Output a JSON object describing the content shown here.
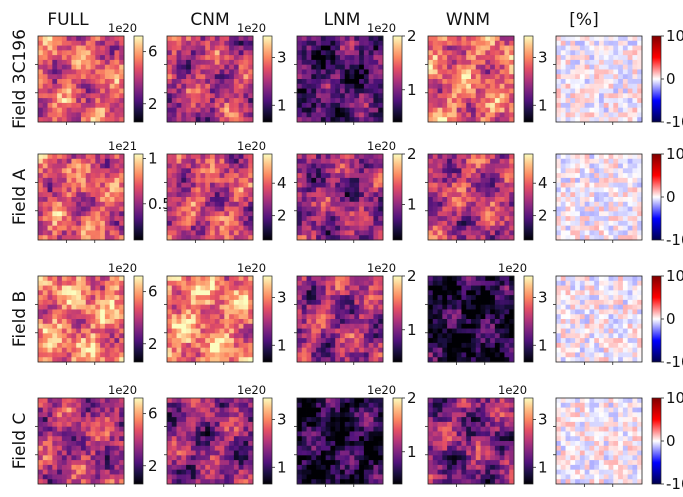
{
  "chart_data": {
    "type": "heatmap",
    "columns": [
      {
        "key": "full",
        "title": "FULL",
        "cmap": "magma"
      },
      {
        "key": "cnm",
        "title": "CNM",
        "cmap": "magma"
      },
      {
        "key": "lnm",
        "title": "LNM",
        "cmap": "magma"
      },
      {
        "key": "wnm",
        "title": "WNM",
        "cmap": "magma"
      },
      {
        "key": "pct",
        "title": "[%]",
        "cmap": "seismic"
      }
    ],
    "rows": [
      {
        "title": "Field 3C196",
        "panels": {
          "full": {
            "exp": "1e20",
            "ticks": [
              "2",
              "6"
            ],
            "range": [
              0.6,
              7.2
            ],
            "tickvals": [
              2,
              6
            ],
            "level": 0.62
          },
          "cnm": {
            "exp": "1e20",
            "ticks": [
              "1",
              "3"
            ],
            "range": [
              0.3,
              3.9
            ],
            "tickvals": [
              1,
              3
            ],
            "level": 0.5
          },
          "lnm": {
            "exp": "1e20",
            "ticks": [
              "1",
              "2"
            ],
            "range": [
              0.4,
              2.0
            ],
            "tickvals": [
              1,
              2
            ],
            "level": 0.25
          },
          "wnm": {
            "exp": "",
            "ticks": [
              "1",
              "3"
            ],
            "range": [
              0.3,
              3.9
            ],
            "tickvals": [
              1,
              3
            ],
            "level": 0.68
          },
          "pct": {
            "exp": "",
            "ticks": [
              "-10",
              "0",
              "10"
            ],
            "range": [
              -10,
              10
            ],
            "tickvals": [
              -10,
              0,
              10
            ],
            "level": 0.5
          }
        }
      },
      {
        "title": "Field A",
        "panels": {
          "full": {
            "exp": "1e21",
            "ticks": [
              "0.5",
              "1"
            ],
            "range": [
              0.1,
              1.05
            ],
            "tickvals": [
              0.5,
              1
            ],
            "level": 0.62
          },
          "cnm": {
            "exp": "1e20",
            "ticks": [
              "2",
              "4"
            ],
            "range": [
              0.5,
              5.8
            ],
            "tickvals": [
              2,
              4
            ],
            "level": 0.55
          },
          "lnm": {
            "exp": "1e20",
            "ticks": [
              "1",
              "2"
            ],
            "range": [
              0.3,
              2.0
            ],
            "tickvals": [
              1,
              2
            ],
            "level": 0.4
          },
          "wnm": {
            "exp": "",
            "ticks": [
              "2",
              "4"
            ],
            "range": [
              0.5,
              5.8
            ],
            "tickvals": [
              2,
              4
            ],
            "level": 0.5
          },
          "pct": {
            "exp": "",
            "ticks": [
              "-10",
              "0",
              "10"
            ],
            "range": [
              -10,
              10
            ],
            "tickvals": [
              -10,
              0,
              10
            ],
            "level": 0.5
          }
        }
      },
      {
        "title": "Field B",
        "panels": {
          "full": {
            "exp": "1e20",
            "ticks": [
              "2",
              "6"
            ],
            "range": [
              0.6,
              7.2
            ],
            "tickvals": [
              2,
              6
            ],
            "level": 0.72
          },
          "cnm": {
            "exp": "1e20",
            "ticks": [
              "1",
              "3"
            ],
            "range": [
              0.3,
              3.9
            ],
            "tickvals": [
              1,
              3
            ],
            "level": 0.75
          },
          "lnm": {
            "exp": "1e20",
            "ticks": [
              "1",
              "2"
            ],
            "range": [
              0.4,
              2.0
            ],
            "tickvals": [
              1,
              2
            ],
            "level": 0.45
          },
          "wnm": {
            "exp": "1e20",
            "ticks": [
              "1",
              "3"
            ],
            "range": [
              0.3,
              3.9
            ],
            "tickvals": [
              1,
              3
            ],
            "level": 0.12
          },
          "pct": {
            "exp": "",
            "ticks": [
              "-10",
              "0",
              "10"
            ],
            "range": [
              -10,
              10
            ],
            "tickvals": [
              -10,
              0,
              10
            ],
            "level": 0.5
          }
        }
      },
      {
        "title": "Field C",
        "panels": {
          "full": {
            "exp": "1e20",
            "ticks": [
              "2",
              "6"
            ],
            "range": [
              0.6,
              7.2
            ],
            "tickvals": [
              2,
              6
            ],
            "level": 0.48
          },
          "cnm": {
            "exp": "1e20",
            "ticks": [
              "1",
              "3"
            ],
            "range": [
              0.3,
              3.9
            ],
            "tickvals": [
              1,
              3
            ],
            "level": 0.4
          },
          "lnm": {
            "exp": "1e20",
            "ticks": [
              "1",
              "2"
            ],
            "range": [
              0.4,
              2.0
            ],
            "tickvals": [
              1,
              2
            ],
            "level": 0.12
          },
          "wnm": {
            "exp": "1e20",
            "ticks": [
              "1",
              "3"
            ],
            "range": [
              0.3,
              3.9
            ],
            "tickvals": [
              1,
              3
            ],
            "level": 0.38
          },
          "pct": {
            "exp": "",
            "ticks": [
              "-10",
              "0",
              "10"
            ],
            "range": [
              -10,
              10
            ],
            "tickvals": [
              -10,
              0,
              10
            ],
            "level": 0.5
          }
        }
      }
    ]
  }
}
